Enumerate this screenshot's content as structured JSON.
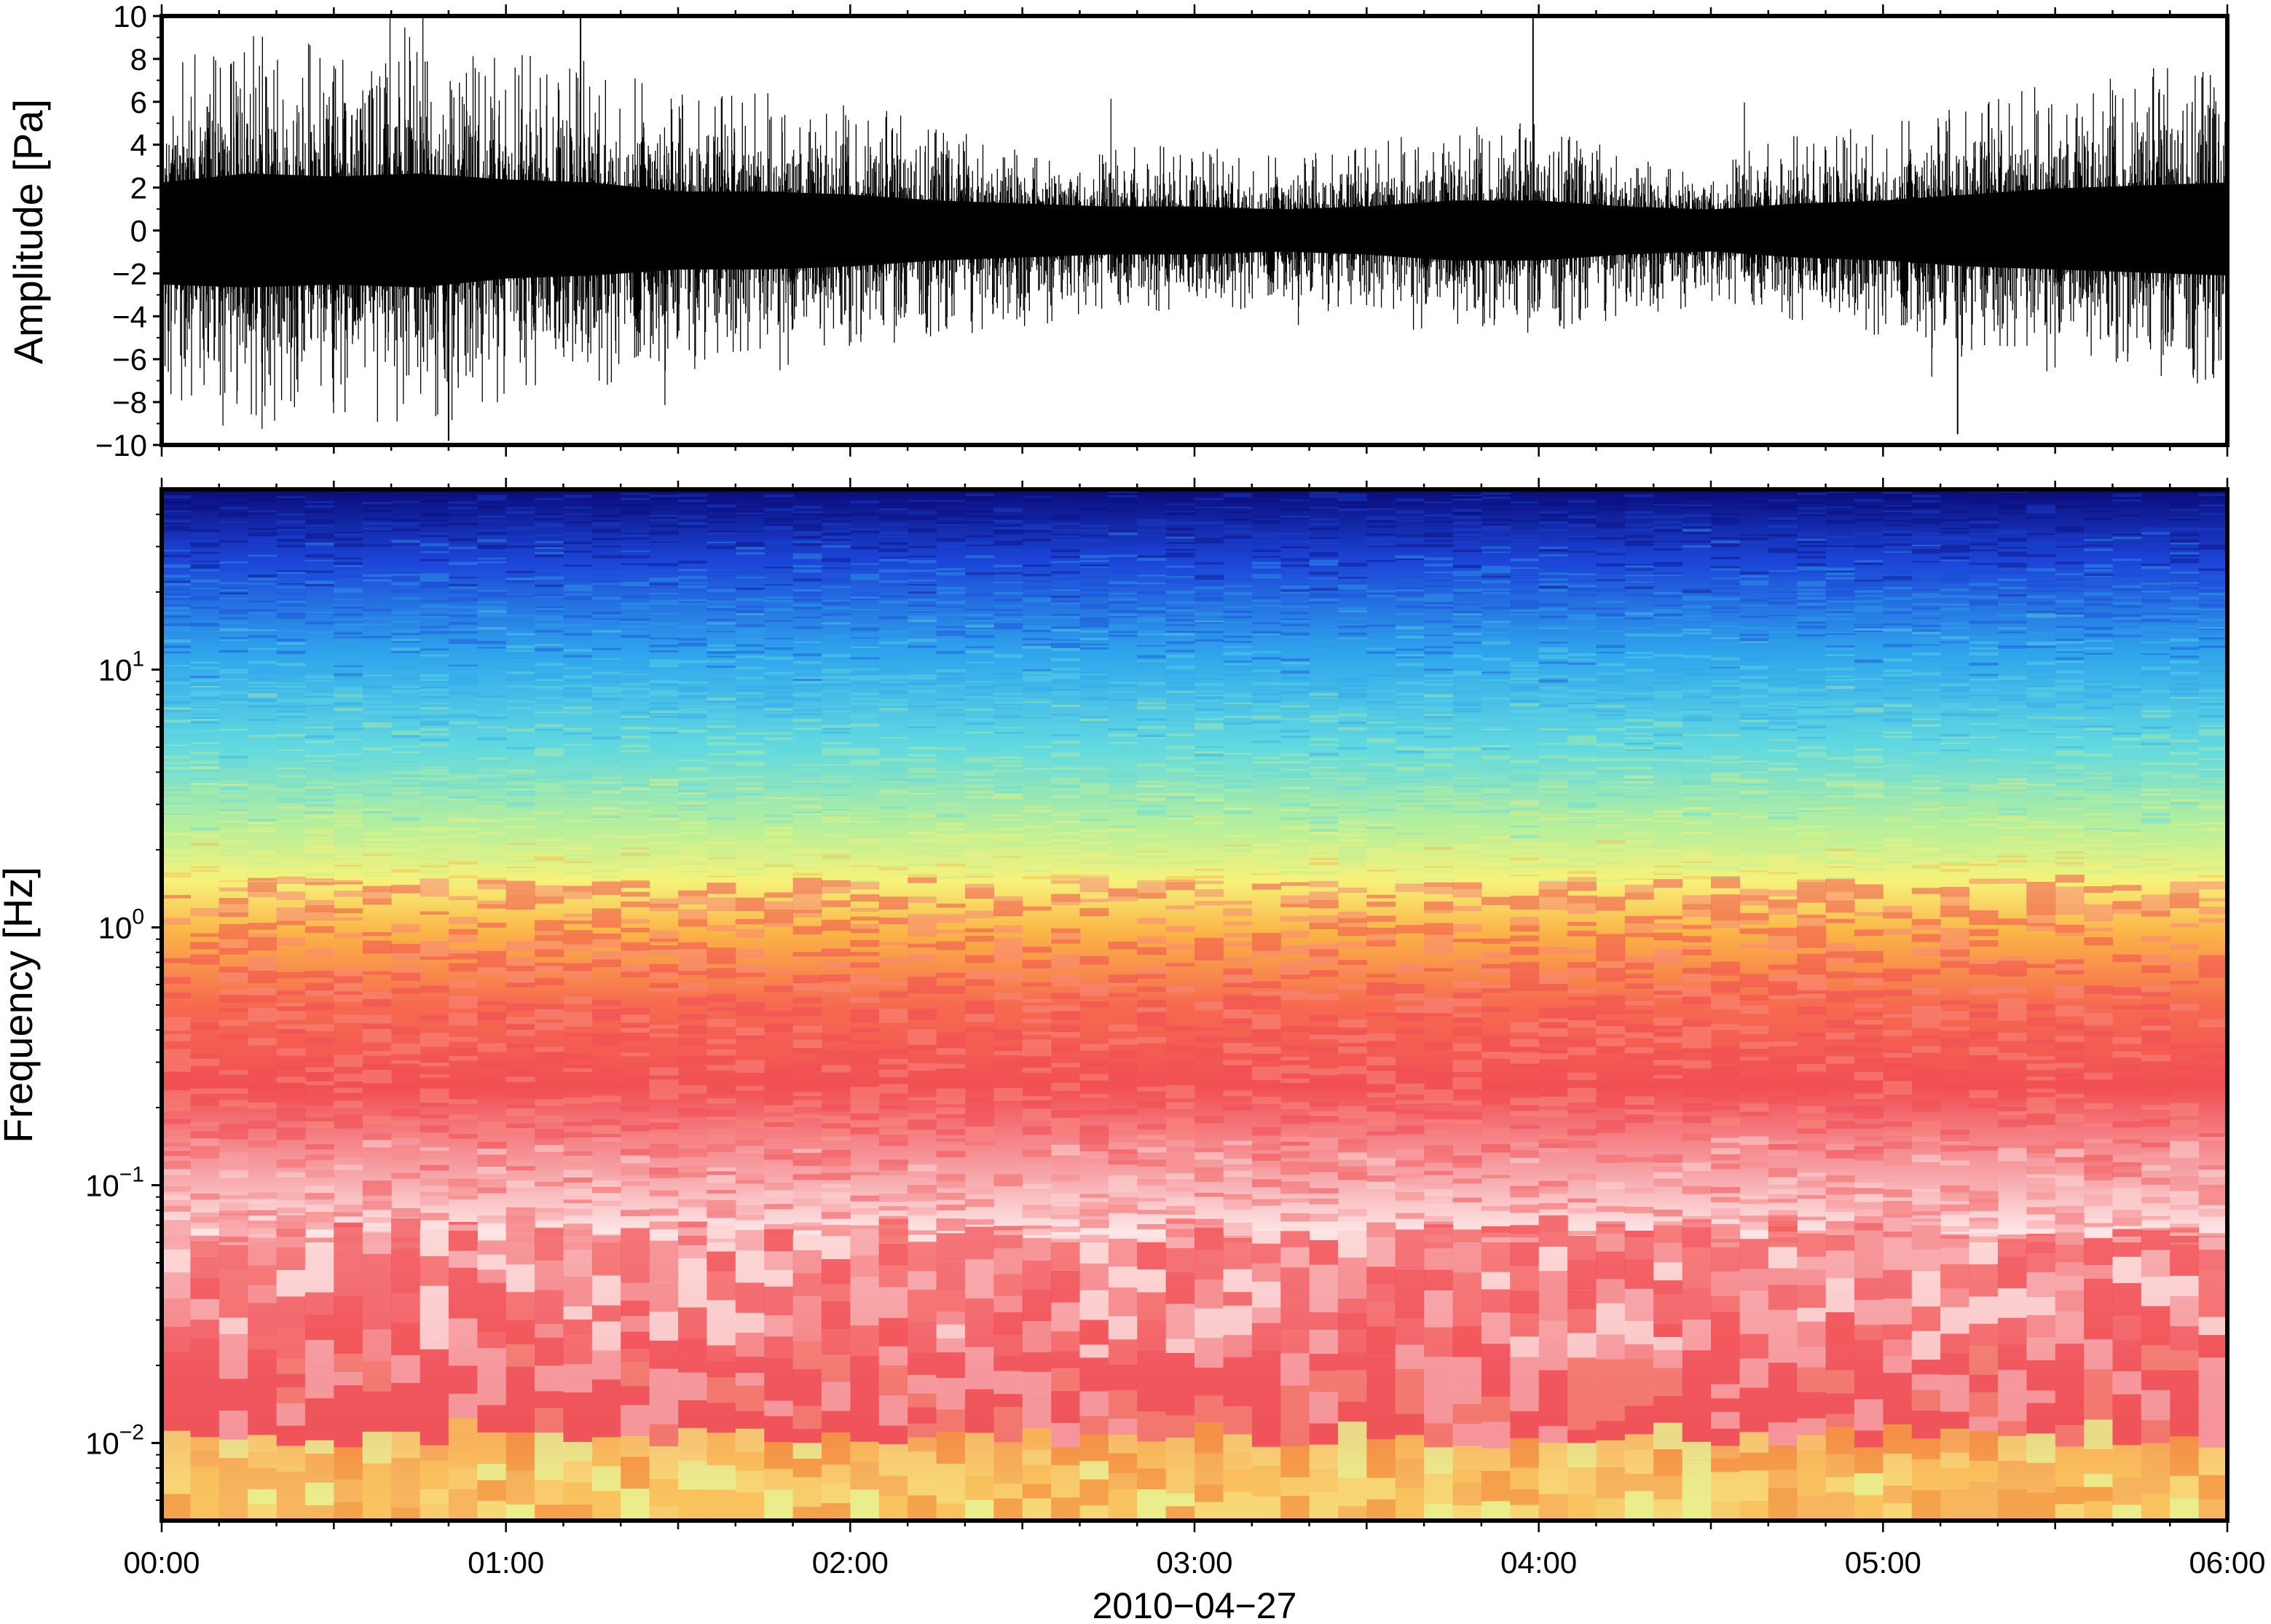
{
  "chart_data": [
    {
      "type": "line",
      "title": "",
      "xlabel": "",
      "ylabel": "Amplitude [Pa]",
      "ylim": [
        -10,
        10
      ],
      "yticks": [
        10,
        8,
        6,
        4,
        2,
        0,
        -2,
        -4,
        -6,
        -8,
        -10
      ],
      "ytick_labels": [
        "10",
        "8",
        "6",
        "4",
        "2",
        "0",
        "−2",
        "−4",
        "−6",
        "−8",
        "−10"
      ],
      "xlim": [
        "00:00",
        "06:00"
      ],
      "grid": false,
      "line_color": "#000000",
      "series": [
        {
          "x": [
            "00:00",
            "00:15",
            "00:30",
            "00:45",
            "01:00",
            "01:15",
            "01:30",
            "01:45",
            "02:00",
            "02:15",
            "02:30",
            "02:45",
            "03:00",
            "03:15",
            "03:30",
            "03:45",
            "04:00",
            "04:15",
            "04:30",
            "04:45",
            "05:00",
            "05:15",
            "05:30",
            "05:45",
            "06:00"
          ],
          "envelope_max": [
            8,
            9.5,
            9,
            9.5,
            8.5,
            8,
            6.5,
            6.5,
            6,
            5,
            4.5,
            4,
            4,
            3.5,
            4,
            5,
            5,
            4,
            3.5,
            4.5,
            5,
            6,
            7,
            7.5,
            8
          ],
          "envelope_min": [
            -9,
            -9.5,
            -9,
            -9.5,
            -8,
            -7.5,
            -6.5,
            -6.5,
            -6,
            -5,
            -4.5,
            -4,
            -4,
            -3.5,
            -4,
            -5,
            -5,
            -4,
            -3.5,
            -4.5,
            -5,
            -6,
            -6.5,
            -7,
            -7.5
          ],
          "spikes": [
            {
              "x": "01:13",
              "y": 10
            },
            {
              "x": "03:59",
              "y": 10
            },
            {
              "x": "05:13",
              "y": -9.5
            },
            {
              "x": "00:50",
              "y": -9.8
            }
          ]
        }
      ]
    },
    {
      "type": "heatmap",
      "title": "",
      "xlabel": "2010−04−27",
      "ylabel": "Frequency [Hz]",
      "yscale": "log",
      "ylim": [
        0.005,
        50
      ],
      "yticks": [
        {
          "base": "10",
          "exp": "1",
          "value": 10
        },
        {
          "base": "10",
          "exp": "0",
          "value": 1
        },
        {
          "base": "10",
          "exp": "−1",
          "value": 0.1
        },
        {
          "base": "10",
          "exp": "−2",
          "value": 0.01
        }
      ],
      "xticks": [
        "00:00",
        "01:00",
        "02:00",
        "03:00",
        "04:00",
        "05:00",
        "06:00"
      ],
      "xlim": [
        "00:00",
        "06:00"
      ],
      "grid": false,
      "colormap": [
        "#0a0c7a",
        "#1c45d8",
        "#2fa6ec",
        "#62d9e0",
        "#b9f09a",
        "#f6f27a",
        "#fbb447",
        "#f66a50",
        "#f14f54",
        "#f6a0a4",
        "#fde6e6"
      ],
      "colormap_note": "power decreases upward; highest levels at lowest frequencies"
    }
  ]
}
